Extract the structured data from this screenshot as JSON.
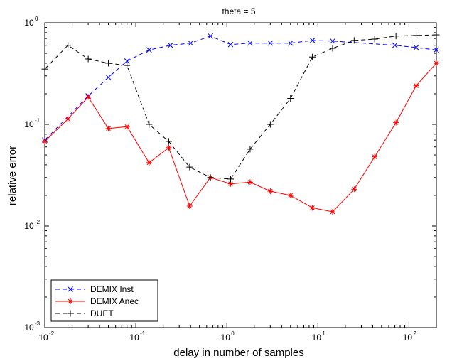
{
  "chart_data": {
    "type": "line",
    "title": "theta = 5",
    "xlabel": "delay in number of samples",
    "ylabel": "relative error",
    "xscale": "log",
    "yscale": "log",
    "xlim": [
      0.01,
      200
    ],
    "ylim": [
      0.001,
      1
    ],
    "x_ticks": [
      {
        "value": 0.01,
        "base": "10",
        "exp": "-2"
      },
      {
        "value": 0.1,
        "base": "10",
        "exp": "-1"
      },
      {
        "value": 1,
        "base": "10",
        "exp": "0"
      },
      {
        "value": 10,
        "base": "10",
        "exp": "1"
      },
      {
        "value": 100,
        "base": "10",
        "exp": "2"
      }
    ],
    "y_ticks": [
      {
        "value": 0.001,
        "base": "10",
        "exp": "-3"
      },
      {
        "value": 0.01,
        "base": "10",
        "exp": "-2"
      },
      {
        "value": 0.1,
        "base": "10",
        "exp": "-1"
      },
      {
        "value": 1,
        "base": "10",
        "exp": "0"
      }
    ],
    "grid": false,
    "legend_position": "bottom-left",
    "series": [
      {
        "name": "DEMIX Inst",
        "color": "#0000ff",
        "line_style": "dashed",
        "marker": "x",
        "x": [
          0.01,
          0.03,
          0.05,
          0.08,
          0.14,
          0.24,
          0.4,
          0.66,
          1.1,
          1.8,
          3.0,
          5.0,
          8.7,
          14.5,
          70,
          120,
          200
        ],
        "y": [
          0.07,
          0.19,
          0.29,
          0.42,
          0.54,
          0.6,
          0.63,
          0.74,
          0.61,
          0.63,
          0.63,
          0.63,
          0.67,
          0.66,
          0.6,
          0.57,
          0.54
        ]
      },
      {
        "name": "DEMIX Anec",
        "color": "#ff0000",
        "line_style": "solid",
        "marker": "*",
        "x": [
          0.01,
          0.018,
          0.03,
          0.05,
          0.08,
          0.14,
          0.23,
          0.39,
          0.66,
          1.1,
          1.8,
          3.0,
          5.0,
          8.7,
          14.5,
          25,
          42,
          72,
          120,
          200
        ],
        "y": [
          0.068,
          0.113,
          0.186,
          0.091,
          0.095,
          0.042,
          0.059,
          0.0157,
          0.03,
          0.026,
          0.027,
          0.022,
          0.02,
          0.0151,
          0.0138,
          0.023,
          0.048,
          0.104,
          0.24,
          0.4
        ]
      },
      {
        "name": "DUET",
        "color": "#000000",
        "line_style": "dashed",
        "marker": "+",
        "x": [
          0.01,
          0.018,
          0.03,
          0.05,
          0.08,
          0.14,
          0.23,
          0.39,
          0.66,
          1.1,
          1.8,
          3.0,
          5.0,
          8.7,
          14.5,
          25,
          42,
          72,
          120,
          200
        ],
        "y": [
          0.35,
          0.6,
          0.44,
          0.4,
          0.38,
          0.1,
          0.068,
          0.038,
          0.03,
          0.029,
          0.057,
          0.1,
          0.18,
          0.46,
          0.56,
          0.67,
          0.69,
          0.74,
          0.75,
          0.76
        ]
      }
    ]
  }
}
